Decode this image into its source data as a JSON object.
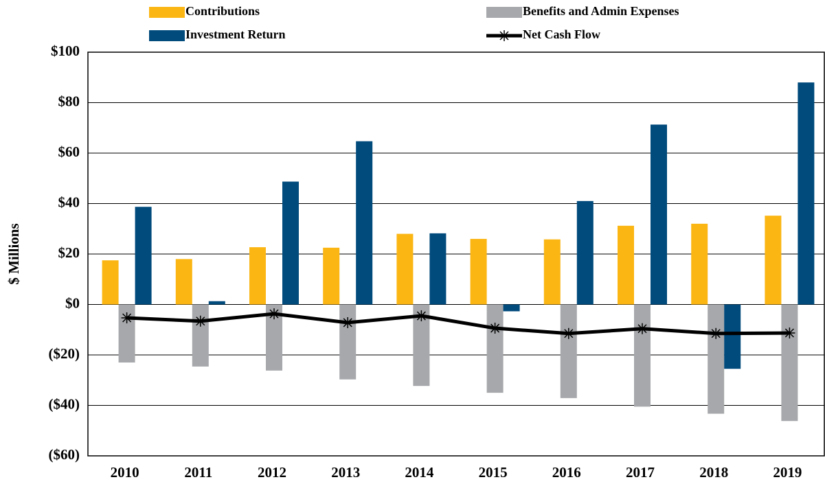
{
  "chart_data": {
    "type": "bar",
    "y_label": "$ Millions",
    "categories": [
      "2010",
      "2011",
      "2012",
      "2013",
      "2014",
      "2015",
      "2016",
      "2017",
      "2018",
      "2019"
    ],
    "series": [
      {
        "name": "Contributions",
        "color": "#fbb614",
        "values": [
          17.5,
          18,
          22.7,
          22.5,
          28,
          26,
          25.8,
          31.2,
          32,
          35.2
        ]
      },
      {
        "name": "Benefits and Admin Expenses",
        "color": "#a6a8ab",
        "values": [
          -23,
          -24.6,
          -26.2,
          -29.7,
          -32.3,
          -35,
          -37.1,
          -40.5,
          -43.3,
          -46.2
        ]
      },
      {
        "name": "Investment Return",
        "color": "#004a7c",
        "values": [
          38.7,
          1.3,
          48.7,
          64.7,
          28.2,
          -2.7,
          41,
          71.3,
          -25.5,
          88
        ]
      },
      {
        "name": "Net Cash Flow",
        "type": "line",
        "color": "#000000",
        "values": [
          -5.3,
          -6.6,
          -3.7,
          -7.2,
          -4.5,
          -9.4,
          -11.5,
          -9.6,
          -11.5,
          -11.3
        ]
      }
    ],
    "ylim": [
      -60,
      100
    ],
    "yticks": [
      {
        "value": -60,
        "label": "($60)"
      },
      {
        "value": -40,
        "label": "($40)"
      },
      {
        "value": -20,
        "label": "($20)"
      },
      {
        "value": 0,
        "label": "$0"
      },
      {
        "value": 20,
        "label": "$20"
      },
      {
        "value": 40,
        "label": "$40"
      },
      {
        "value": 60,
        "label": "$60"
      },
      {
        "value": 80,
        "label": "$80"
      },
      {
        "value": 100,
        "label": "$100"
      }
    ],
    "grid": true
  }
}
